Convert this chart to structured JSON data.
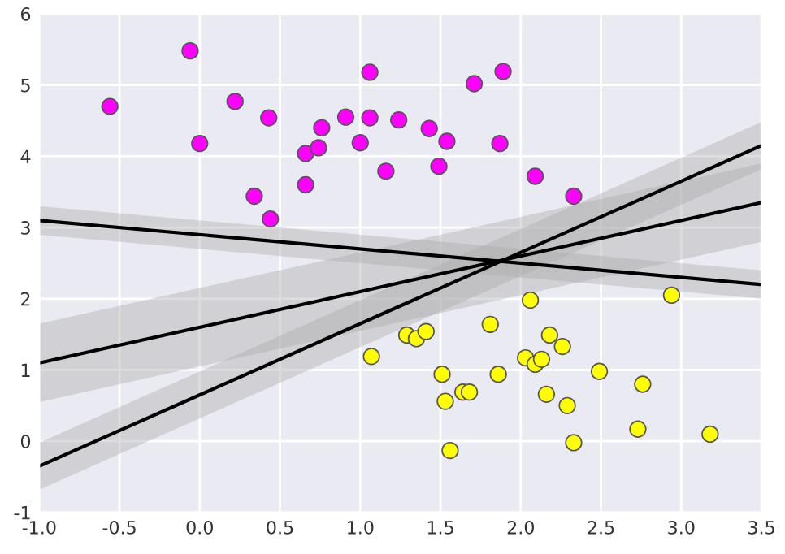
{
  "chart_data": {
    "type": "scatter",
    "grid": true,
    "legend": false,
    "marker": "circle",
    "xlim": [
      -1.0,
      3.5
    ],
    "xticks": [
      {
        "value": -1.0,
        "label": "-1.0"
      },
      {
        "value": -0.5,
        "label": "-0.5"
      },
      {
        "value": 0.0,
        "label": "0.0"
      },
      {
        "value": 0.5,
        "label": "0.5"
      },
      {
        "value": 1.0,
        "label": "1.0"
      },
      {
        "value": 1.5,
        "label": "1.5"
      },
      {
        "value": 2.0,
        "label": "2.0"
      },
      {
        "value": 2.5,
        "label": "2.5"
      },
      {
        "value": 3.0,
        "label": "3.0"
      },
      {
        "value": 3.5,
        "label": "3.5"
      }
    ],
    "ylim": [
      -1,
      6
    ],
    "yticks": [
      -1,
      0,
      1,
      2,
      3,
      4,
      5,
      6
    ],
    "series": [
      {
        "color": "#ff00ff",
        "x": [
          -0.56,
          -0.06,
          0.0,
          0.22,
          0.43,
          0.34,
          0.44,
          0.66,
          0.66,
          0.74,
          0.76,
          0.91,
          1.0,
          1.06,
          1.06,
          1.16,
          1.24,
          1.43,
          1.49,
          1.54,
          1.71,
          1.89,
          1.87,
          2.09,
          2.33
        ],
        "values": [
          4.7,
          5.48,
          4.18,
          4.77,
          4.54,
          3.44,
          3.12,
          4.04,
          3.6,
          4.12,
          4.4,
          4.55,
          4.19,
          5.18,
          4.54,
          3.79,
          4.51,
          4.39,
          3.86,
          4.21,
          5.02,
          5.19,
          4.18,
          3.72,
          3.44
        ]
      },
      {
        "color": "#ffff00",
        "x": [
          1.07,
          1.29,
          1.35,
          1.41,
          1.51,
          1.53,
          1.56,
          1.64,
          1.68,
          1.81,
          1.86,
          2.03,
          2.06,
          2.09,
          2.13,
          2.16,
          2.18,
          2.26,
          2.29,
          2.33,
          2.49,
          2.73,
          2.76,
          2.94,
          3.18
        ],
        "values": [
          1.19,
          1.49,
          1.44,
          1.54,
          0.94,
          0.56,
          -0.13,
          0.69,
          0.69,
          1.64,
          0.94,
          1.17,
          1.98,
          1.08,
          1.15,
          0.66,
          1.49,
          1.33,
          0.5,
          -0.02,
          0.98,
          0.17,
          0.8,
          2.05,
          0.1
        ]
      },
      {
        "type": "line",
        "color": "#000000",
        "marker": "none",
        "x": [
          -1.0,
          3.5
        ],
        "values": [
          -0.35,
          4.15
        ],
        "lower": [
          -0.68,
          3.82
        ],
        "upper": [
          -0.02,
          4.48
        ]
      },
      {
        "type": "line",
        "color": "#000000",
        "marker": "none",
        "x": [
          -1.0,
          3.5
        ],
        "values": [
          1.1,
          3.35
        ],
        "lower": [
          0.55,
          2.8
        ],
        "upper": [
          1.65,
          3.9
        ]
      },
      {
        "type": "line",
        "color": "#000000",
        "marker": "none",
        "x": [
          -1.0,
          3.5
        ],
        "values": [
          3.1,
          2.2
        ],
        "lower": [
          2.9,
          2.0
        ],
        "upper": [
          3.3,
          2.4
        ]
      }
    ]
  }
}
